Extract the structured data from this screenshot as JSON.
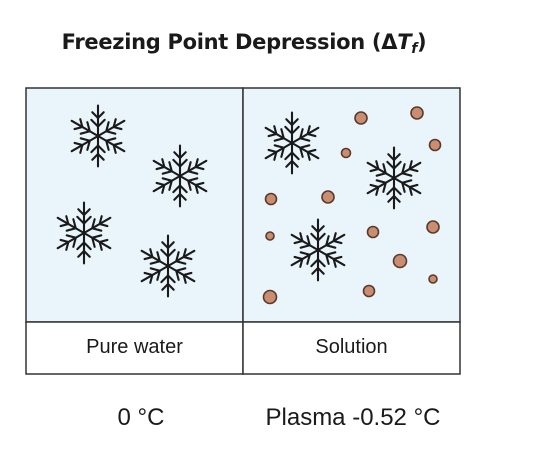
{
  "title": {
    "text": "Freezing Point Depression (Δ",
    "symbol": "T",
    "subscript": "f",
    "close": ")"
  },
  "panels": [
    {
      "label": "Pure water",
      "temperature": "0 °C"
    },
    {
      "label": "Solution",
      "temperature": "Plasma -0.52 °C"
    }
  ],
  "colors": {
    "panel_fill": "#e9f4fb",
    "border": "#333333",
    "crystal": "#1a1a1a",
    "solute": "#c98e71",
    "solute_stroke": "#5a3a2a"
  },
  "icons": {
    "crystal": "snowflake-icon",
    "solute": "solute-particle"
  }
}
